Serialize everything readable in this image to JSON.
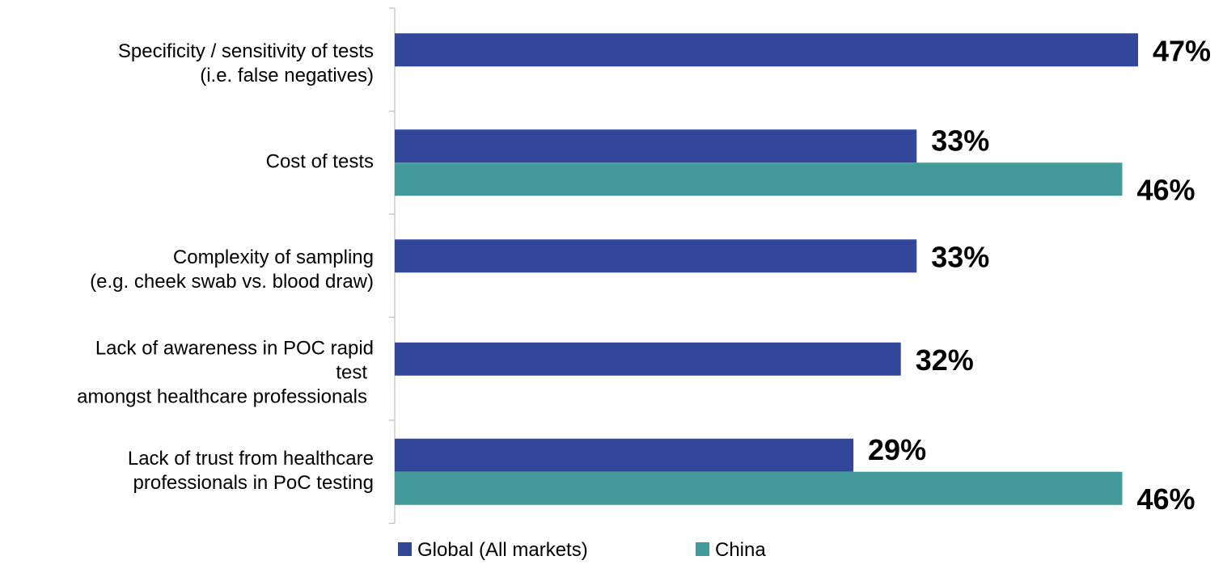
{
  "chart_data": {
    "type": "bar",
    "orientation": "horizontal",
    "categories": [
      [
        "Specificity / sensitivity of tests",
        "(i.e. false negatives)"
      ],
      [
        "Cost of tests"
      ],
      [
        "Complexity of sampling",
        "(e.g. cheek swab vs. blood draw)"
      ],
      [
        "Lack of awareness in POC rapid",
        "test",
        "amongst healthcare professionals"
      ],
      [
        "Lack of trust from healthcare",
        "professionals in PoC testing"
      ]
    ],
    "series": [
      {
        "name": "Global (All markets)",
        "color": "#32479A",
        "values": [
          47,
          33,
          33,
          32,
          29
        ],
        "labels": [
          "47%",
          "33%",
          "33%",
          "32%",
          "29%"
        ]
      },
      {
        "name": "China",
        "color": "#429B9A",
        "values": [
          null,
          46,
          null,
          null,
          46
        ],
        "labels": [
          null,
          "46%",
          null,
          null,
          "46%"
        ]
      }
    ],
    "xlim": [
      0,
      47
    ],
    "grid": false,
    "legend_position": "bottom",
    "title": "",
    "xlabel": "",
    "ylabel": ""
  }
}
